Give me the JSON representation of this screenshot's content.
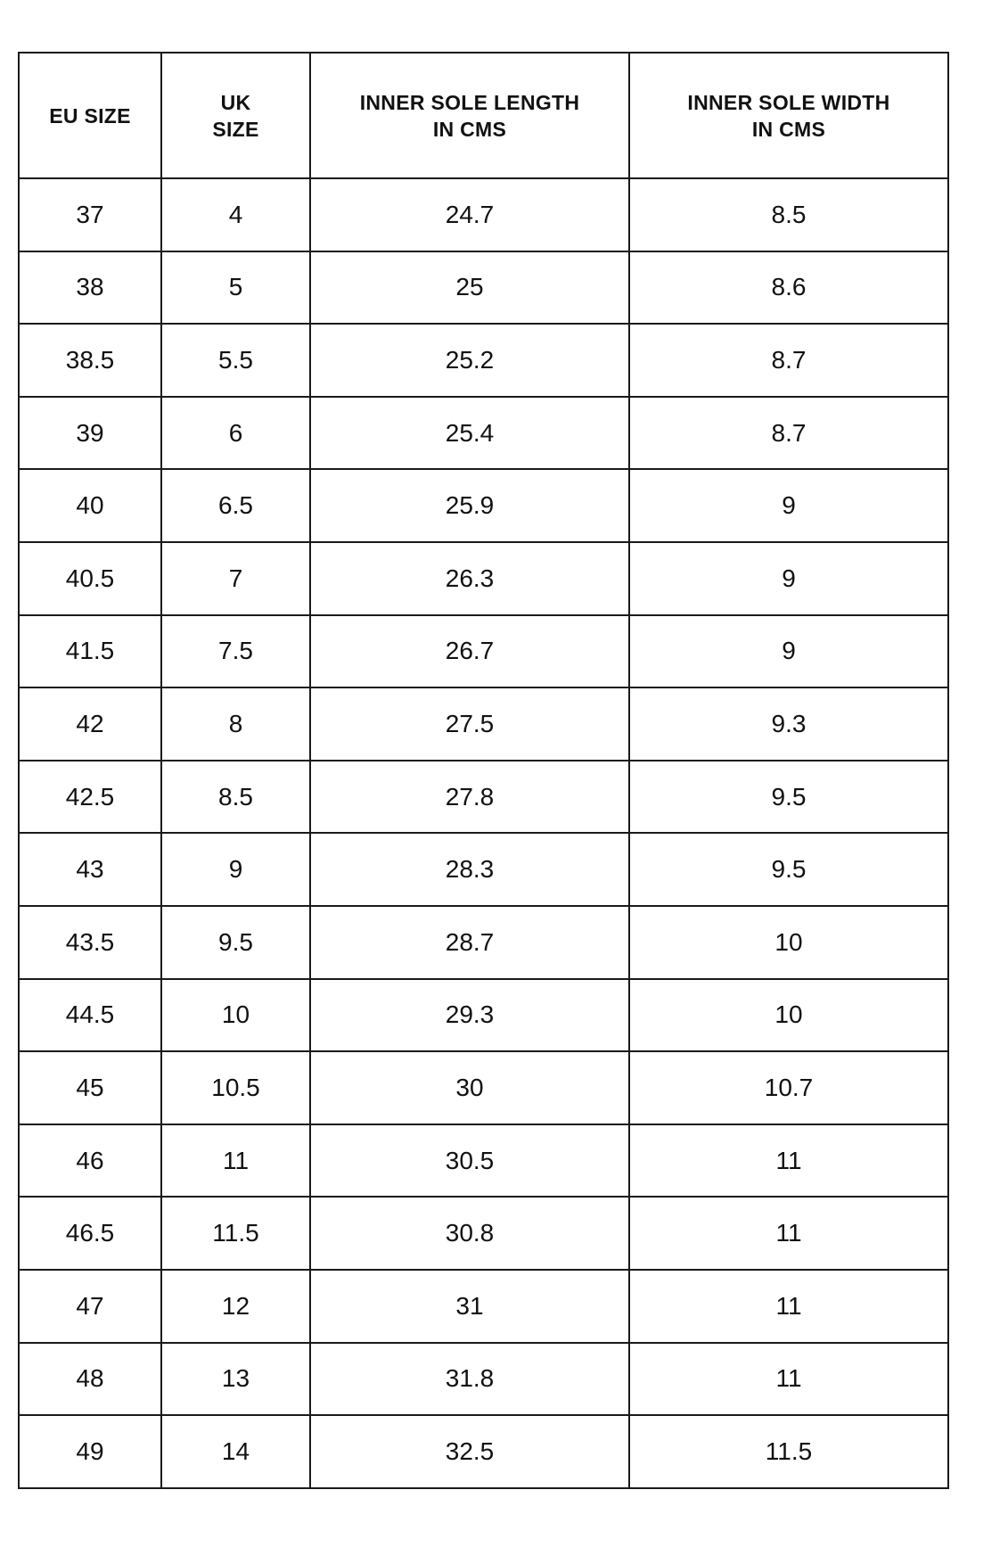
{
  "table": {
    "headers": [
      "EU SIZE",
      "UK\nSIZE",
      "INNER SOLE LENGTH\nIN CMS",
      "INNER SOLE WIDTH\nIN CMS"
    ],
    "rows": [
      [
        "37",
        "4",
        "24.7",
        "8.5"
      ],
      [
        "38",
        "5",
        "25",
        "8.6"
      ],
      [
        "38.5",
        "5.5",
        "25.2",
        "8.7"
      ],
      [
        "39",
        "6",
        "25.4",
        "8.7"
      ],
      [
        "40",
        "6.5",
        "25.9",
        "9"
      ],
      [
        "40.5",
        "7",
        "26.3",
        "9"
      ],
      [
        "41.5",
        "7.5",
        "26.7",
        "9"
      ],
      [
        "42",
        "8",
        "27.5",
        "9.3"
      ],
      [
        "42.5",
        "8.5",
        "27.8",
        "9.5"
      ],
      [
        "43",
        "9",
        "28.3",
        "9.5"
      ],
      [
        "43.5",
        "9.5",
        "28.7",
        "10"
      ],
      [
        "44.5",
        "10",
        "29.3",
        "10"
      ],
      [
        "45",
        "10.5",
        "30",
        "10.7"
      ],
      [
        "46",
        "11",
        "30.5",
        "11"
      ],
      [
        "46.5",
        "11.5",
        "30.8",
        "11"
      ],
      [
        "47",
        "12",
        "31",
        "11"
      ],
      [
        "48",
        "13",
        "31.8",
        "11"
      ],
      [
        "49",
        "14",
        "32.5",
        "11.5"
      ]
    ]
  }
}
